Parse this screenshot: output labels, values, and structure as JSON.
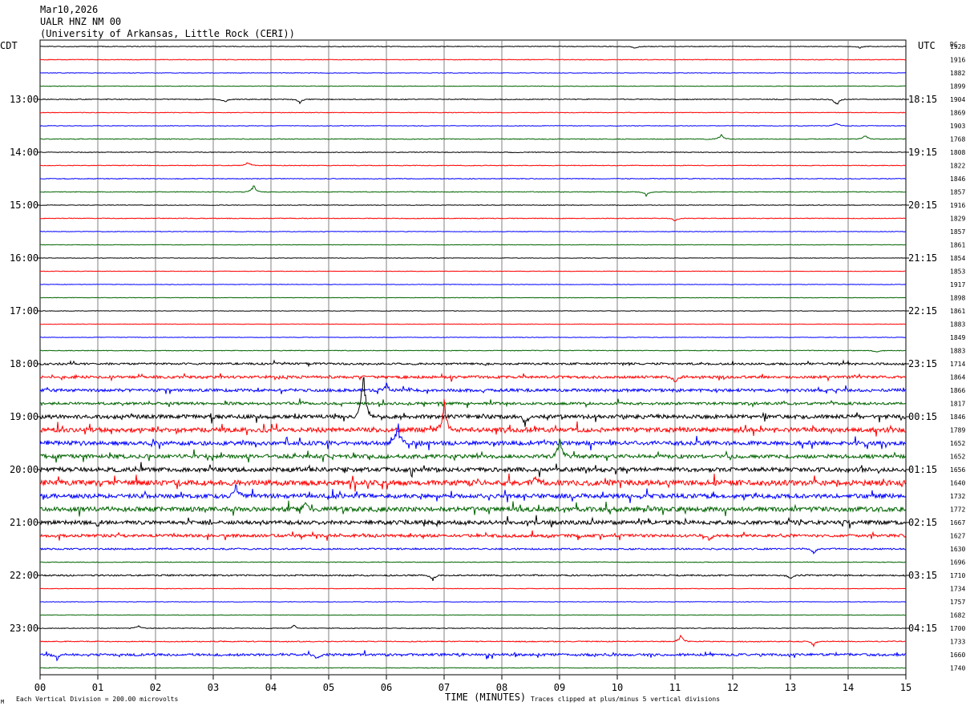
{
  "header": {
    "date": "Mar10,2026",
    "station": "UALR HNZ NM 00",
    "institution": "(University of Arkansas, Little Rock (CERI))"
  },
  "labels": {
    "left_zone": "CDT",
    "right_zone": "UTC",
    "dc_header": "DC",
    "x_axis_title": "TIME (MINUTES)",
    "scale_note": "Each Vertical Division =  200.00 microvolts",
    "clip_note": "Traces clipped at plus/minus 5 vertical divisions",
    "corner_mark": "M"
  },
  "colors": {
    "cycle": [
      "#000000",
      "#ff0000",
      "#0000ff",
      "#006400"
    ],
    "grid": "#808080",
    "frame": "#000000"
  },
  "chart_data": {
    "type": "line",
    "title": "",
    "xlabel": "TIME (MINUTES)",
    "ylabel": "",
    "xlim": [
      0,
      15
    ],
    "x_ticks": [
      "00",
      "01",
      "02",
      "03",
      "04",
      "05",
      "06",
      "07",
      "08",
      "09",
      "10",
      "11",
      "12",
      "13",
      "14",
      "15"
    ],
    "left_time_labels": [
      {
        "row": 4,
        "text": "13:00"
      },
      {
        "row": 8,
        "text": "14:00"
      },
      {
        "row": 12,
        "text": "15:00"
      },
      {
        "row": 16,
        "text": "16:00"
      },
      {
        "row": 20,
        "text": "17:00"
      },
      {
        "row": 24,
        "text": "18:00"
      },
      {
        "row": 28,
        "text": "19:00"
      },
      {
        "row": 32,
        "text": "20:00"
      },
      {
        "row": 36,
        "text": "21:00"
      },
      {
        "row": 40,
        "text": "22:00"
      },
      {
        "row": 44,
        "text": "23:00"
      }
    ],
    "right_time_labels": [
      {
        "row": 4,
        "text": "18:15"
      },
      {
        "row": 8,
        "text": "19:15"
      },
      {
        "row": 12,
        "text": "20:15"
      },
      {
        "row": 16,
        "text": "21:15"
      },
      {
        "row": 20,
        "text": "22:15"
      },
      {
        "row": 24,
        "text": "23:15"
      },
      {
        "row": 28,
        "text": "00:15"
      },
      {
        "row": 32,
        "text": "01:15"
      },
      {
        "row": 36,
        "text": "02:15"
      },
      {
        "row": 40,
        "text": "03:15"
      },
      {
        "row": 44,
        "text": "04:15"
      }
    ],
    "dc_values": [
      "1928",
      "1916",
      "1882",
      "1899",
      "1904",
      "1869",
      "1903",
      "1768",
      "1808",
      "1822",
      "1846",
      "1857",
      "1916",
      "1829",
      "1857",
      "1861",
      "1854",
      "1853",
      "1917",
      "1898",
      "1861",
      "1883",
      "1849",
      "1883",
      "1714",
      "1864",
      "1866",
      "1817",
      "1846",
      "1789",
      "1652",
      "1652",
      "1656",
      "1640",
      "1732",
      "1772",
      "1667",
      "1627",
      "1630",
      "1696",
      "1710",
      "1734",
      "1757",
      "1682",
      "1700",
      "1733",
      "1660",
      "1740"
    ],
    "noise_levels": [
      0.45,
      0.45,
      0.35,
      0.35,
      0.5,
      0.4,
      0.35,
      0.5,
      0.45,
      0.45,
      0.45,
      0.45,
      0.4,
      0.45,
      0.35,
      0.3,
      0.3,
      0.3,
      0.3,
      0.3,
      0.3,
      0.3,
      0.3,
      0.45,
      1.2,
      1.6,
      1.8,
      1.6,
      2.4,
      2.8,
      2.5,
      2.4,
      2.6,
      3.2,
      2.6,
      2.8,
      2.4,
      1.8,
      1.0,
      0.45,
      0.9,
      0.35,
      0.3,
      0.3,
      0.45,
      0.6,
      1.5,
      0.4
    ],
    "events": [
      {
        "row": 0,
        "minute": 10.3,
        "amp": 3
      },
      {
        "row": 0,
        "minute": 14.2,
        "amp": 2
      },
      {
        "row": 4,
        "minute": 3.2,
        "amp": 4
      },
      {
        "row": 4,
        "minute": 4.5,
        "amp": 5
      },
      {
        "row": 4,
        "minute": 13.8,
        "amp": 9
      },
      {
        "row": 6,
        "minute": 13.8,
        "amp": -5
      },
      {
        "row": 7,
        "minute": 11.8,
        "amp": -6
      },
      {
        "row": 7,
        "minute": 14.3,
        "amp": -6
      },
      {
        "row": 9,
        "minute": 3.6,
        "amp": -5
      },
      {
        "row": 11,
        "minute": 3.7,
        "amp": -9
      },
      {
        "row": 11,
        "minute": 10.5,
        "amp": 5
      },
      {
        "row": 13,
        "minute": 11.0,
        "amp": 4
      },
      {
        "row": 23,
        "minute": 14.5,
        "amp": 3
      },
      {
        "row": 25,
        "minute": 11.0,
        "amp": 9
      },
      {
        "row": 26,
        "minute": 6.0,
        "amp": -8
      },
      {
        "row": 28,
        "minute": 5.6,
        "amp": -65
      },
      {
        "row": 28,
        "minute": 8.4,
        "amp": 12
      },
      {
        "row": 29,
        "minute": 7.0,
        "amp": -40
      },
      {
        "row": 30,
        "minute": 6.2,
        "amp": -30
      },
      {
        "row": 31,
        "minute": 9.0,
        "amp": -24
      },
      {
        "row": 33,
        "minute": 8.6,
        "amp": -10
      },
      {
        "row": 34,
        "minute": 3.4,
        "amp": -16
      },
      {
        "row": 35,
        "minute": 4.6,
        "amp": -12
      },
      {
        "row": 36,
        "minute": 1.0,
        "amp": 6
      },
      {
        "row": 37,
        "minute": 11.6,
        "amp": 6
      },
      {
        "row": 38,
        "minute": 13.4,
        "amp": 7
      },
      {
        "row": 40,
        "minute": 6.8,
        "amp": 7
      },
      {
        "row": 40,
        "minute": 13.0,
        "amp": 6
      },
      {
        "row": 44,
        "minute": 1.7,
        "amp": -4
      },
      {
        "row": 44,
        "minute": 4.4,
        "amp": -4
      },
      {
        "row": 45,
        "minute": 11.1,
        "amp": -8
      },
      {
        "row": 45,
        "minute": 13.4,
        "amp": 6
      },
      {
        "row": 46,
        "minute": 0.3,
        "amp": 7
      },
      {
        "row": 46,
        "minute": 4.8,
        "amp": 6
      }
    ]
  }
}
